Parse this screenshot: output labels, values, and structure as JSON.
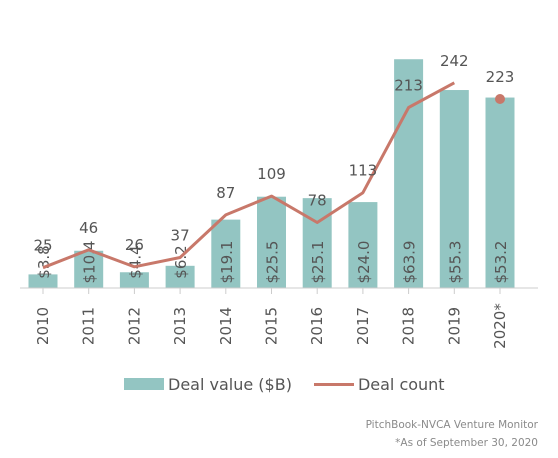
{
  "colors": {
    "bar": "#93c5c2",
    "line": "#c8786a",
    "text": "#555555",
    "axis": "#cccccc"
  },
  "chart_data": {
    "type": "bar",
    "categories": [
      "2010",
      "2011",
      "2012",
      "2013",
      "2014",
      "2015",
      "2016",
      "2017",
      "2018",
      "2019",
      "2020*"
    ],
    "series": [
      {
        "name": "Deal value ($B)",
        "type": "bar",
        "values": [
          3.8,
          10.4,
          4.4,
          6.2,
          19.1,
          25.5,
          25.1,
          24.0,
          63.9,
          55.3,
          53.2
        ],
        "labels": [
          "$3.8",
          "$10.4",
          "$4.4",
          "$6.2",
          "$19.1",
          "$25.5",
          "$25.1",
          "$24.0",
          "$63.9",
          "$55.3",
          "$53.2"
        ]
      },
      {
        "name": "Deal count",
        "type": "line",
        "values": [
          25,
          46,
          26,
          37,
          87,
          109,
          78,
          113,
          213,
          242,
          223
        ]
      }
    ],
    "grid": false,
    "legend": "bottom"
  },
  "legend": {
    "bar_label": "Deal value ($B)",
    "line_label": "Deal count"
  },
  "source": {
    "line1": "PitchBook-NVCA Venture Monitor",
    "line2": "*As of September 30, 2020"
  }
}
